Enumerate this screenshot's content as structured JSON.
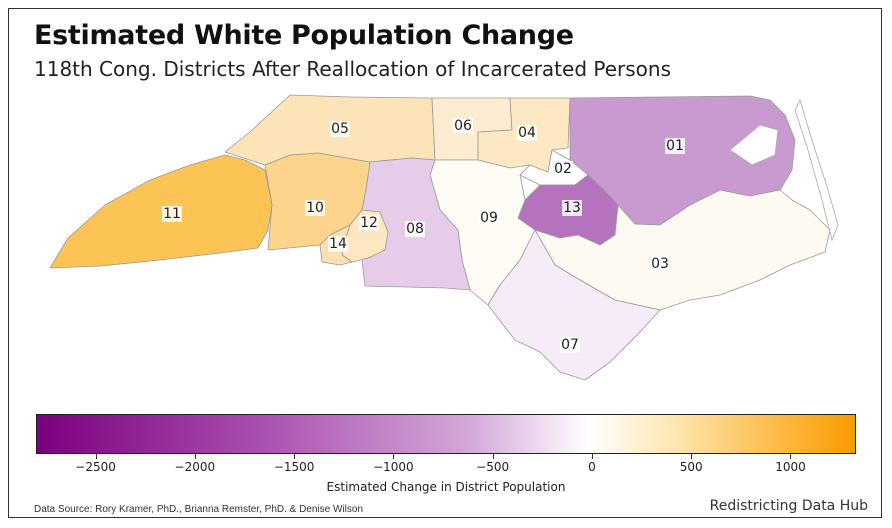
{
  "title": "Estimated White Population Change",
  "subtitle": "118th Cong. Districts After Reallocation of Incarcerated Persons",
  "districts": [
    {
      "id": "01",
      "label": "01",
      "value": -1300,
      "color": "#c99ad0"
    },
    {
      "id": "02",
      "label": "02",
      "value": -100,
      "color": "#ffffff"
    },
    {
      "id": "03",
      "label": "03",
      "value": 60,
      "color": "#fffaf1"
    },
    {
      "id": "04",
      "label": "04",
      "value": 250,
      "color": "#fde8c4"
    },
    {
      "id": "05",
      "label": "05",
      "value": 280,
      "color": "#fde3b8"
    },
    {
      "id": "06",
      "label": "06",
      "value": 200,
      "color": "#feecd0"
    },
    {
      "id": "07",
      "label": "07",
      "value": -250,
      "color": "#f6ecf7"
    },
    {
      "id": "08",
      "label": "08",
      "value": -650,
      "color": "#e6cce9"
    },
    {
      "id": "09",
      "label": "09",
      "value": 30,
      "color": "#fffcf6"
    },
    {
      "id": "10",
      "label": "10",
      "value": 550,
      "color": "#fcd48c"
    },
    {
      "id": "11",
      "label": "11",
      "value": 1000,
      "color": "#fbc455"
    },
    {
      "id": "12",
      "label": "12",
      "value": 250,
      "color": "#fee6c0"
    },
    {
      "id": "13",
      "label": "13",
      "value": -1700,
      "color": "#b473bc"
    },
    {
      "id": "14",
      "label": "14",
      "value": 300,
      "color": "#fde0b0"
    }
  ],
  "legend": {
    "title": "Estimated Change in District Population",
    "min": -2800,
    "max": 1330,
    "ticks": [
      {
        "value": -2500,
        "label": "−2500"
      },
      {
        "value": -2000,
        "label": "−2000"
      },
      {
        "value": -1500,
        "label": "−1500"
      },
      {
        "value": -1000,
        "label": "−1000"
      },
      {
        "value": -500,
        "label": "−500"
      },
      {
        "value": 0,
        "label": "0"
      },
      {
        "value": 500,
        "label": "500"
      },
      {
        "value": 1000,
        "label": "1000"
      }
    ]
  },
  "source": "Data Source: Rory Kramer, PhD., Brianna Remster, PhD. & Denise Wilson",
  "brand": "Redistricting Data Hub"
}
